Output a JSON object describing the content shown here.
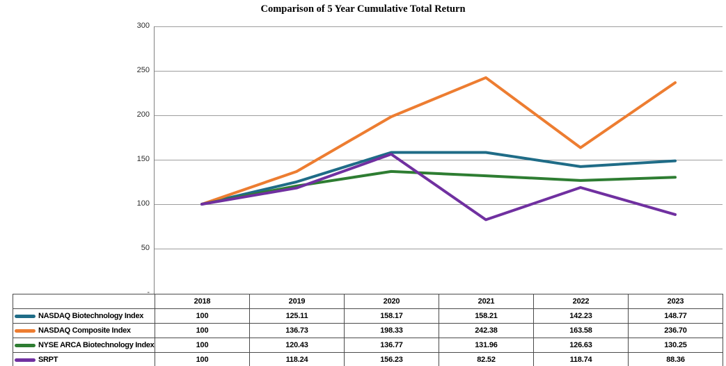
{
  "title": "Comparison of 5 Year Cumulative Total Return",
  "chart_data": {
    "type": "line",
    "title": "Comparison of 5 Year Cumulative Total Return",
    "categories": [
      "2018",
      "2019",
      "2020",
      "2021",
      "2022",
      "2023"
    ],
    "series": [
      {
        "name": "NASDAQ Biotechnology Index",
        "color": "#1f6c87",
        "values": [
          100,
          125.11,
          158.17,
          158.21,
          142.23,
          148.77
        ]
      },
      {
        "name": "NASDAQ Composite Index",
        "color": "#ed7d31",
        "values": [
          100,
          136.73,
          198.33,
          242.38,
          163.58,
          236.7
        ]
      },
      {
        "name": "NYSE ARCA Biotechnology Index",
        "color": "#2e7d32",
        "values": [
          100,
          120.43,
          136.77,
          131.96,
          126.63,
          130.25
        ]
      },
      {
        "name": "SRPT",
        "color": "#7030a0",
        "values": [
          100,
          118.24,
          156.23,
          82.52,
          118.74,
          88.36
        ]
      }
    ],
    "ylim": [
      0,
      300
    ],
    "ytick_labels": [
      "300",
      "250",
      "200",
      "150",
      "100",
      "50",
      "-"
    ],
    "grid": true,
    "grid_color": "#9d9d9d",
    "axis_color": "#808080",
    "line_width": 4,
    "legend_position": "table-rows-left"
  },
  "table": {
    "year_headers": [
      "2018",
      "2019",
      "2020",
      "2021",
      "2022",
      "2023"
    ],
    "rows": [
      {
        "label": "NASDAQ Biotechnology Index",
        "swatch_color": "#1f6c87",
        "cells": [
          "100",
          "125.11",
          "158.17",
          "158.21",
          "142.23",
          "148.77"
        ]
      },
      {
        "label": "NASDAQ Composite Index",
        "swatch_color": "#ed7d31",
        "cells": [
          "100",
          "136.73",
          "198.33",
          "242.38",
          "163.58",
          "236.70"
        ]
      },
      {
        "label": "NYSE ARCA Biotechnology Index",
        "swatch_color": "#2e7d32",
        "cells": [
          "100",
          "120.43",
          "136.77",
          "131.96",
          "126.63",
          "130.25"
        ]
      },
      {
        "label": "SRPT",
        "swatch_color": "#7030a0",
        "cells": [
          "100",
          "118.24",
          "156.23",
          "82.52",
          "118.74",
          "88.36"
        ]
      }
    ],
    "border_color": "#4a4a4a"
  }
}
